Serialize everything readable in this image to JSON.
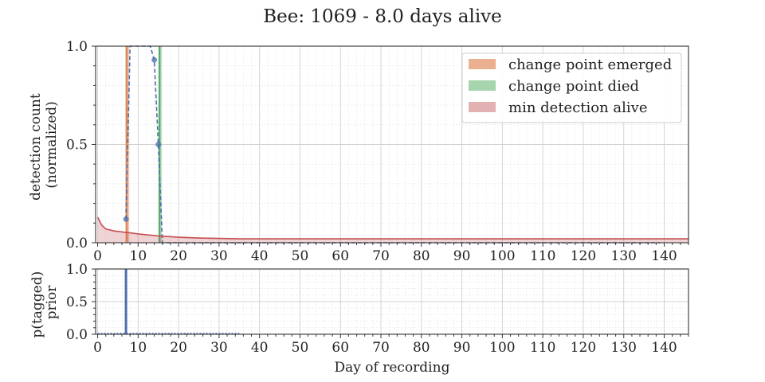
{
  "chart_data": [
    {
      "type": "line",
      "title": "Bee: 1069 - 8.0 days alive",
      "xlabel": "",
      "ylabel": "detection count\n(normalized)",
      "xlim": [
        -0.5,
        146
      ],
      "ylim": [
        0,
        1.0
      ],
      "x_ticks": [
        0,
        10,
        20,
        30,
        40,
        50,
        60,
        70,
        80,
        90,
        100,
        110,
        120,
        130,
        140
      ],
      "y_ticks": [
        0.0,
        0.5,
        1.0
      ],
      "y_tick_labels": [
        "0.0",
        "0.5",
        "1.0"
      ],
      "grid": true,
      "legend_position": "top-right",
      "legend": [
        {
          "label": "change point emerged",
          "color": "#eab08f"
        },
        {
          "label": "change point died",
          "color": "#a6d4ad"
        },
        {
          "label": "min detection alive",
          "color": "#e2b1b1"
        }
      ],
      "series": [
        {
          "style": "dashed-markers",
          "color": "#4c6fad",
          "x": [
            7,
            8,
            9,
            10,
            11,
            12,
            13,
            14,
            15,
            16,
            17,
            18,
            19,
            20,
            25,
            30,
            35,
            40,
            50,
            60,
            70,
            80,
            90,
            100,
            110,
            120,
            130,
            139
          ],
          "y": [
            0.12,
            1.0,
            1.0,
            1.0,
            1.0,
            1.0,
            1.0,
            0.93,
            0.5,
            0.0,
            0.0,
            0.0,
            0.0,
            0.0,
            0.0,
            0.0,
            0.0,
            0.0,
            0.0,
            0.0,
            0.0,
            0.0,
            0.0,
            0.0,
            0.0,
            0.0,
            0.0,
            0.0
          ]
        },
        {
          "style": "line-filled",
          "color": "#c44e52",
          "x": [
            0,
            1,
            2,
            4,
            6,
            8,
            10,
            15,
            20,
            25,
            30,
            35,
            40,
            50,
            60,
            80,
            100,
            120,
            146
          ],
          "y": [
            0.13,
            0.09,
            0.07,
            0.06,
            0.055,
            0.05,
            0.045,
            0.035,
            0.028,
            0.024,
            0.022,
            0.02,
            0.02,
            0.02,
            0.02,
            0.02,
            0.02,
            0.02,
            0.02
          ]
        }
      ],
      "vlines": [
        {
          "x": 7.2,
          "color": "#dd8452",
          "band": [
            6.8,
            7.8
          ]
        },
        {
          "x": 15.3,
          "color": "#55a868",
          "band": [
            15.0,
            15.8
          ]
        }
      ]
    },
    {
      "type": "line",
      "title": "",
      "xlabel": "Day of recording",
      "ylabel": "p(tagged)\nprior",
      "xlim": [
        -0.5,
        146
      ],
      "ylim": [
        0,
        1.0
      ],
      "x_ticks": [
        0,
        10,
        20,
        30,
        40,
        50,
        60,
        70,
        80,
        90,
        100,
        110,
        120,
        130,
        140
      ],
      "y_ticks": [
        0.0,
        0.5,
        1.0
      ],
      "y_tick_labels": [
        "0.0",
        "0.5",
        "1.0"
      ],
      "grid": true,
      "series": [
        {
          "style": "dotted-baseline",
          "color": "#4c6fad",
          "x": [
            0,
            35
          ],
          "y": [
            0.01,
            0.01
          ]
        }
      ],
      "spikes": [
        {
          "x": 7,
          "y": 1.0,
          "color": "#4c6fad"
        }
      ]
    }
  ]
}
